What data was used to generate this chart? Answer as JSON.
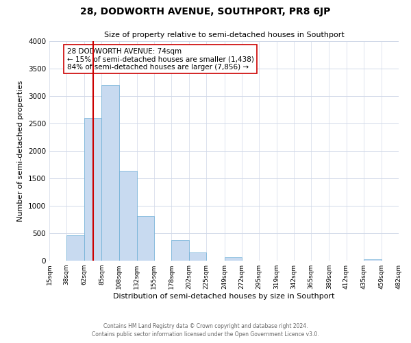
{
  "title": "28, DODWORTH AVENUE, SOUTHPORT, PR8 6JP",
  "subtitle": "Size of property relative to semi-detached houses in Southport",
  "xlabel": "Distribution of semi-detached houses by size in Southport",
  "ylabel": "Number of semi-detached properties",
  "footnote1": "Contains HM Land Registry data © Crown copyright and database right 2024.",
  "footnote2": "Contains public sector information licensed under the Open Government Licence v3.0.",
  "bin_edges": [
    15,
    38,
    62,
    85,
    108,
    132,
    155,
    178,
    202,
    225,
    249,
    272,
    295,
    319,
    342,
    365,
    389,
    412,
    435,
    459,
    482
  ],
  "bar_heights": [
    0,
    460,
    2600,
    3200,
    1640,
    810,
    0,
    375,
    155,
    0,
    60,
    0,
    0,
    0,
    0,
    0,
    0,
    0,
    20,
    0
  ],
  "bar_color": "#c8daf0",
  "bar_edge_color": "#6baed6",
  "property_line_x": 74,
  "property_line_color": "#cc0000",
  "annotation_text": "28 DODWORTH AVENUE: 74sqm\n← 15% of semi-detached houses are smaller (1,438)\n84% of semi-detached houses are larger (7,856) →",
  "annotation_box_color": "#ffffff",
  "annotation_box_edge_color": "#cc0000",
  "ylim": [
    0,
    4000
  ],
  "tick_labels": [
    "15sqm",
    "38sqm",
    "62sqm",
    "85sqm",
    "108sqm",
    "132sqm",
    "155sqm",
    "178sqm",
    "202sqm",
    "225sqm",
    "249sqm",
    "272sqm",
    "295sqm",
    "319sqm",
    "342sqm",
    "365sqm",
    "389sqm",
    "412sqm",
    "435sqm",
    "459sqm",
    "482sqm"
  ],
  "background_color": "#ffffff",
  "grid_color": "#d0d8e8"
}
